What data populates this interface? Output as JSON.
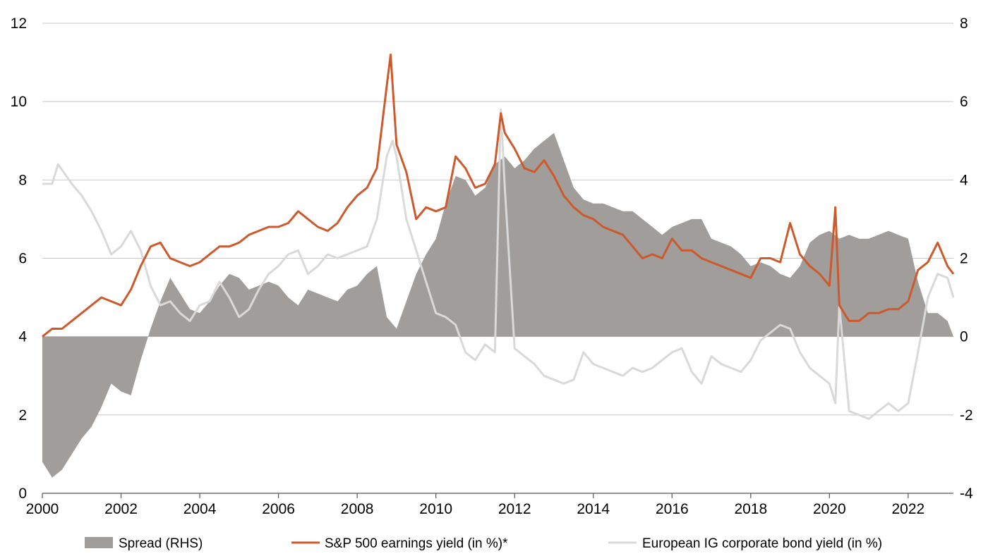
{
  "chart_data": {
    "type": "line",
    "title": "",
    "xlabel": "",
    "ylabel": "",
    "y2label": "",
    "xlim": [
      2000.0,
      2023.15
    ],
    "ylim": [
      0,
      12
    ],
    "y2lim": [
      -4,
      8
    ],
    "x_ticks": [
      "2000",
      "2002",
      "2004",
      "2006",
      "2008",
      "2010",
      "2012",
      "2014",
      "2016",
      "2018",
      "2020",
      "2022"
    ],
    "y_ticks": [
      "0",
      "2",
      "4",
      "6",
      "8",
      "10",
      "12"
    ],
    "y2_ticks": [
      "-4",
      "-2",
      "0",
      "2",
      "4",
      "6",
      "8"
    ],
    "grid": true,
    "legend_position": "bottom",
    "colors": {
      "spread": "#a09d9a",
      "sp500": "#cc5a2c",
      "euro_ig": "#d9d9d9"
    },
    "series": [
      {
        "name": "Spread (RHS)",
        "type": "area",
        "axis": "right",
        "x": [
          2000.0,
          2000.25,
          2000.5,
          2000.75,
          2001.0,
          2001.25,
          2001.5,
          2001.75,
          2002.0,
          2002.25,
          2002.5,
          2002.75,
          2003.0,
          2003.25,
          2003.5,
          2003.75,
          2004.0,
          2004.25,
          2004.5,
          2004.75,
          2005.0,
          2005.25,
          2005.5,
          2005.75,
          2006.0,
          2006.25,
          2006.5,
          2006.75,
          2007.0,
          2007.25,
          2007.5,
          2007.75,
          2008.0,
          2008.25,
          2008.5,
          2008.75,
          2009.0,
          2009.25,
          2009.5,
          2009.75,
          2010.0,
          2010.25,
          2010.5,
          2010.75,
          2011.0,
          2011.25,
          2011.5,
          2011.75,
          2012.0,
          2012.25,
          2012.5,
          2012.75,
          2013.0,
          2013.25,
          2013.5,
          2013.75,
          2014.0,
          2014.25,
          2014.5,
          2014.75,
          2015.0,
          2015.25,
          2015.5,
          2015.75,
          2016.0,
          2016.25,
          2016.5,
          2016.75,
          2017.0,
          2017.25,
          2017.5,
          2017.75,
          2018.0,
          2018.25,
          2018.5,
          2018.75,
          2019.0,
          2019.25,
          2019.5,
          2019.75,
          2020.0,
          2020.25,
          2020.5,
          2020.75,
          2021.0,
          2021.25,
          2021.5,
          2021.75,
          2022.0,
          2022.25,
          2022.5,
          2022.75,
          2023.0,
          2023.15
        ],
        "values": [
          -3.2,
          -3.6,
          -3.4,
          -3.0,
          -2.6,
          -2.3,
          -1.8,
          -1.2,
          -1.4,
          -1.5,
          -0.6,
          0.2,
          0.9,
          1.5,
          1.1,
          0.7,
          0.6,
          0.9,
          1.3,
          1.6,
          1.5,
          1.2,
          1.3,
          1.4,
          1.3,
          1.0,
          0.8,
          1.2,
          1.1,
          1.0,
          0.9,
          1.2,
          1.3,
          1.6,
          1.8,
          0.5,
          0.2,
          0.9,
          1.6,
          2.1,
          2.5,
          3.4,
          4.1,
          4.0,
          3.6,
          3.8,
          4.4,
          4.6,
          4.3,
          4.5,
          4.8,
          5.0,
          5.2,
          4.5,
          3.8,
          3.5,
          3.4,
          3.4,
          3.3,
          3.2,
          3.2,
          3.0,
          2.8,
          2.6,
          2.8,
          2.9,
          3.0,
          3.0,
          2.5,
          2.4,
          2.3,
          2.1,
          1.8,
          1.9,
          1.8,
          1.6,
          1.5,
          1.8,
          2.4,
          2.6,
          2.7,
          2.5,
          2.6,
          2.5,
          2.5,
          2.6,
          2.7,
          2.6,
          2.5,
          1.4,
          0.6,
          0.6,
          0.4,
          0.0
        ]
      },
      {
        "name": "S&P 500 earnings yield (in %)*",
        "type": "line",
        "axis": "left",
        "x": [
          2000.0,
          2000.25,
          2000.5,
          2000.75,
          2001.0,
          2001.25,
          2001.5,
          2001.75,
          2002.0,
          2002.25,
          2002.5,
          2002.75,
          2003.0,
          2003.25,
          2003.5,
          2003.75,
          2004.0,
          2004.25,
          2004.5,
          2004.75,
          2005.0,
          2005.25,
          2005.5,
          2005.75,
          2006.0,
          2006.25,
          2006.5,
          2006.75,
          2007.0,
          2007.25,
          2007.5,
          2007.75,
          2008.0,
          2008.25,
          2008.5,
          2008.75,
          2008.85,
          2009.0,
          2009.25,
          2009.5,
          2009.75,
          2010.0,
          2010.25,
          2010.5,
          2010.75,
          2011.0,
          2011.25,
          2011.5,
          2011.65,
          2011.75,
          2012.0,
          2012.25,
          2012.5,
          2012.75,
          2013.0,
          2013.25,
          2013.5,
          2013.75,
          2014.0,
          2014.25,
          2014.5,
          2014.75,
          2015.0,
          2015.25,
          2015.5,
          2015.75,
          2016.0,
          2016.25,
          2016.5,
          2016.75,
          2017.0,
          2017.25,
          2017.5,
          2017.75,
          2018.0,
          2018.25,
          2018.5,
          2018.75,
          2019.0,
          2019.25,
          2019.5,
          2019.75,
          2020.0,
          2020.15,
          2020.25,
          2020.5,
          2020.75,
          2021.0,
          2021.25,
          2021.5,
          2021.75,
          2022.0,
          2022.25,
          2022.5,
          2022.75,
          2023.0,
          2023.15
        ],
        "values": [
          4.0,
          4.2,
          4.2,
          4.4,
          4.6,
          4.8,
          5.0,
          4.9,
          4.8,
          5.2,
          5.8,
          6.3,
          6.4,
          6.0,
          5.9,
          5.8,
          5.9,
          6.1,
          6.3,
          6.3,
          6.4,
          6.6,
          6.7,
          6.8,
          6.8,
          6.9,
          7.2,
          7.0,
          6.8,
          6.7,
          6.9,
          7.3,
          7.6,
          7.8,
          8.3,
          10.4,
          11.2,
          8.9,
          8.2,
          7.0,
          7.3,
          7.2,
          7.3,
          8.6,
          8.3,
          7.8,
          7.9,
          8.4,
          9.7,
          9.2,
          8.8,
          8.3,
          8.2,
          8.5,
          8.1,
          7.6,
          7.3,
          7.1,
          7.0,
          6.8,
          6.7,
          6.6,
          6.3,
          6.0,
          6.1,
          6.0,
          6.5,
          6.2,
          6.2,
          6.0,
          5.9,
          5.8,
          5.7,
          5.6,
          5.5,
          6.0,
          6.0,
          5.9,
          6.9,
          6.1,
          5.8,
          5.6,
          5.3,
          7.3,
          4.8,
          4.4,
          4.4,
          4.6,
          4.6,
          4.7,
          4.7,
          4.9,
          5.7,
          5.9,
          6.4,
          5.8,
          5.6
        ]
      },
      {
        "name": "European IG corporate bond yield (in %)",
        "type": "line",
        "axis": "right",
        "x": [
          2000.0,
          2000.25,
          2000.4,
          2000.75,
          2001.0,
          2001.25,
          2001.5,
          2001.75,
          2002.0,
          2002.25,
          2002.5,
          2002.75,
          2003.0,
          2003.25,
          2003.5,
          2003.75,
          2004.0,
          2004.25,
          2004.5,
          2004.75,
          2005.0,
          2005.25,
          2005.5,
          2005.75,
          2006.0,
          2006.25,
          2006.5,
          2006.75,
          2007.0,
          2007.25,
          2007.5,
          2007.75,
          2008.0,
          2008.25,
          2008.5,
          2008.75,
          2008.9,
          2009.0,
          2009.25,
          2009.5,
          2009.75,
          2010.0,
          2010.25,
          2010.5,
          2010.75,
          2011.0,
          2011.25,
          2011.5,
          2011.65,
          2011.75,
          2012.0,
          2012.25,
          2012.5,
          2012.75,
          2013.0,
          2013.25,
          2013.5,
          2013.75,
          2014.0,
          2014.25,
          2014.5,
          2014.75,
          2015.0,
          2015.25,
          2015.5,
          2015.75,
          2016.0,
          2016.25,
          2016.5,
          2016.75,
          2017.0,
          2017.25,
          2017.5,
          2017.75,
          2018.0,
          2018.25,
          2018.5,
          2018.75,
          2019.0,
          2019.25,
          2019.5,
          2019.75,
          2020.0,
          2020.15,
          2020.25,
          2020.5,
          2020.75,
          2021.0,
          2021.25,
          2021.5,
          2021.75,
          2022.0,
          2022.25,
          2022.5,
          2022.75,
          2023.0,
          2023.15
        ],
        "values": [
          3.9,
          3.9,
          4.4,
          3.9,
          3.6,
          3.2,
          2.7,
          2.1,
          2.3,
          2.7,
          2.2,
          1.3,
          0.8,
          0.9,
          0.6,
          0.4,
          0.8,
          0.9,
          1.4,
          1.0,
          0.5,
          0.7,
          1.2,
          1.6,
          1.8,
          2.1,
          2.2,
          1.6,
          1.8,
          2.1,
          2.0,
          2.1,
          2.2,
          2.3,
          3.0,
          4.6,
          5.0,
          4.6,
          3.0,
          2.2,
          1.4,
          0.6,
          0.5,
          0.3,
          -0.4,
          -0.6,
          -0.2,
          -0.4,
          5.8,
          3.8,
          -0.3,
          -0.5,
          -0.7,
          -1.0,
          -1.1,
          -1.2,
          -1.1,
          -0.4,
          -0.7,
          -0.8,
          -0.9,
          -1.0,
          -0.8,
          -0.9,
          -0.8,
          -0.6,
          -0.4,
          -0.3,
          -0.9,
          -1.2,
          -0.5,
          -0.7,
          -0.8,
          -0.9,
          -0.6,
          -0.1,
          0.1,
          0.3,
          0.2,
          -0.4,
          -0.8,
          -1.0,
          -1.2,
          -1.7,
          0.8,
          -1.9,
          -2.0,
          -2.1,
          -1.9,
          -1.7,
          -1.9,
          -1.7,
          -0.4,
          1.0,
          1.6,
          1.5,
          1.0
        ]
      }
    ]
  }
}
